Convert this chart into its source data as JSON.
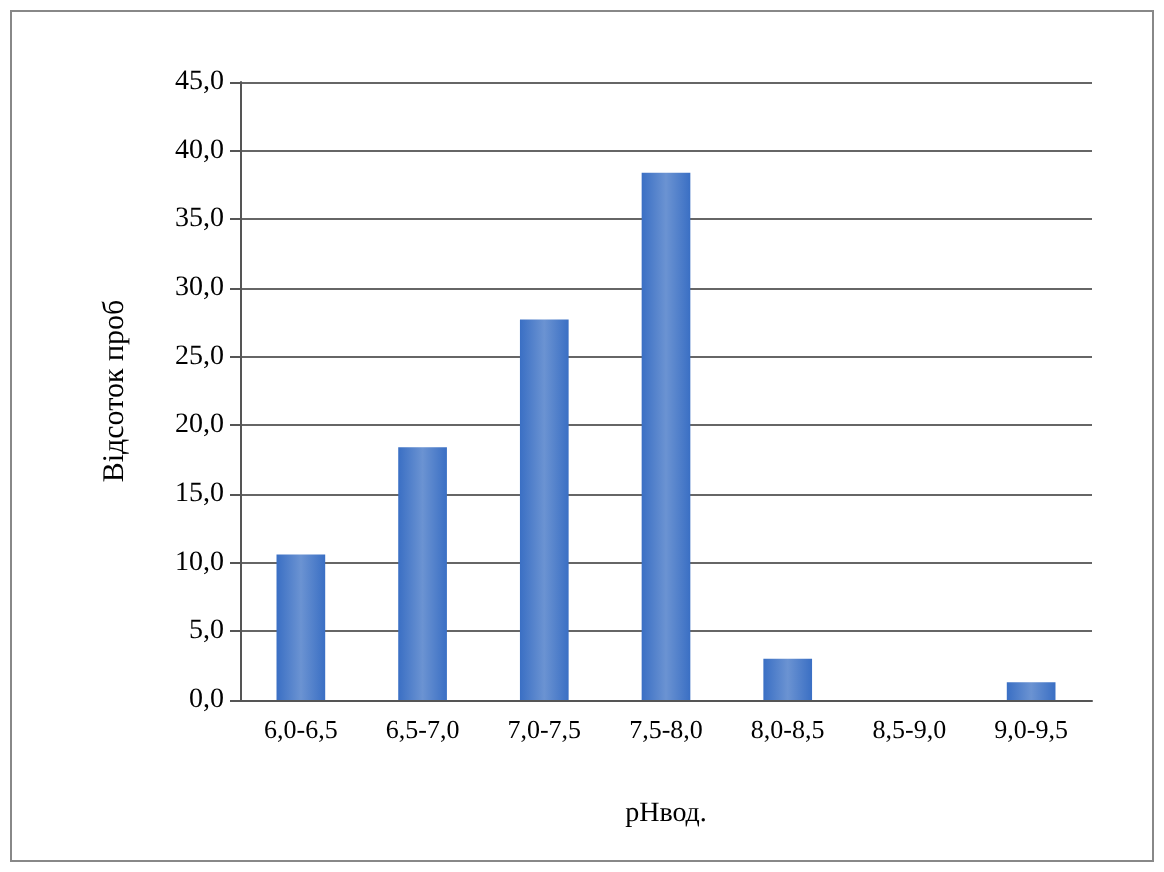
{
  "chart_data": {
    "type": "bar",
    "xlabel": "pHвод.",
    "ylabel": "Відсоток проб",
    "categories": [
      "6,0-6,5",
      "6,5-7,0",
      "7,0-7,5",
      "7,5-8,0",
      "8,0-8,5",
      "8,5-9,0",
      "9,0-9,5"
    ],
    "values": [
      10.6,
      18.4,
      27.7,
      38.4,
      3.0,
      0,
      1.3
    ],
    "color": "#3a6fc4",
    "ylim": [
      0,
      45
    ],
    "yticks": [
      {
        "value": 0,
        "label": "0,0"
      },
      {
        "value": 5,
        "label": "5,0"
      },
      {
        "value": 10,
        "label": "10,0"
      },
      {
        "value": 15,
        "label": "15,0"
      },
      {
        "value": 20,
        "label": "20,0"
      },
      {
        "value": 25,
        "label": "25,0"
      },
      {
        "value": 30,
        "label": "30,0"
      },
      {
        "value": 35,
        "label": "35,0"
      },
      {
        "value": 40,
        "label": "40,0"
      },
      {
        "value": 45,
        "label": "45,0"
      }
    ],
    "grid": "y"
  }
}
